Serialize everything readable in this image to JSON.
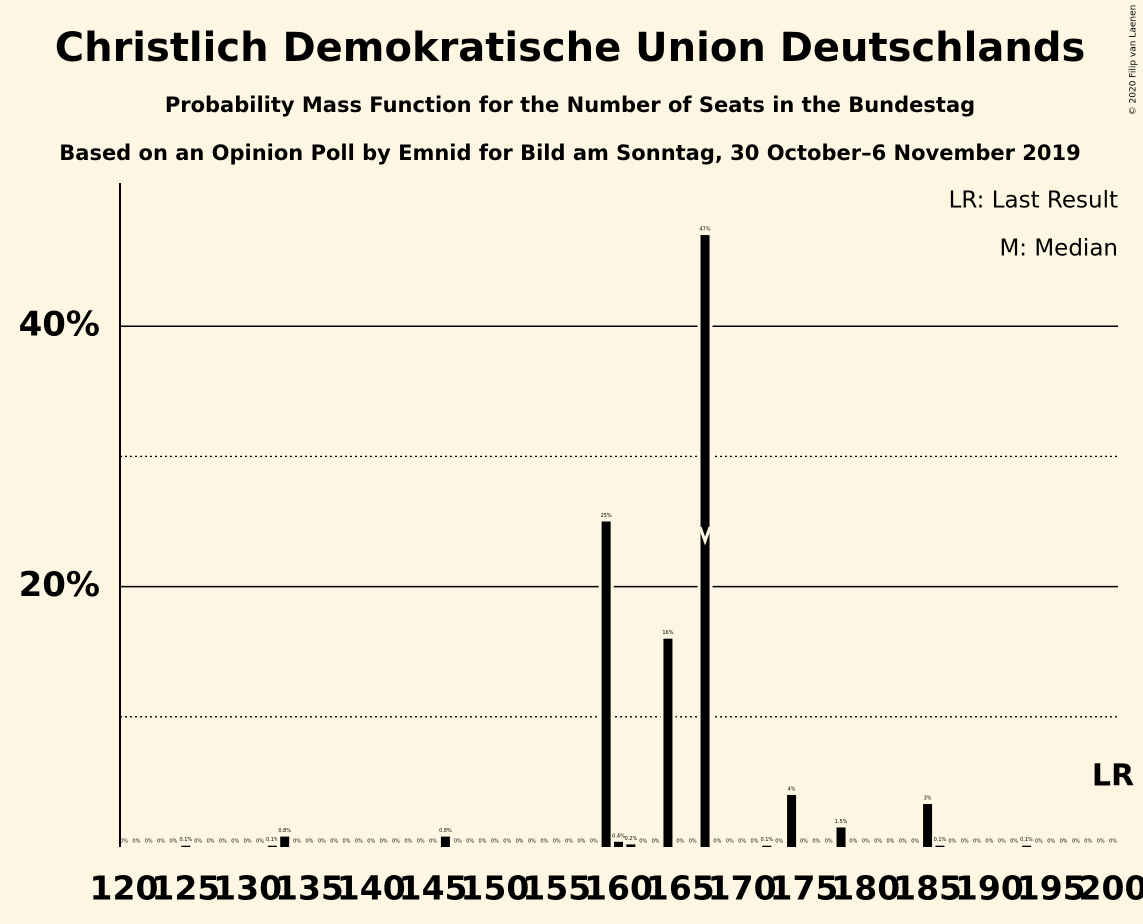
{
  "chart_data": {
    "type": "bar",
    "title": "Christlich Demokratische Union Deutschlands",
    "subtitle": "Probability Mass Function for the Number of Seats in the Bundestag",
    "subtitle2": "Based on an Opinion Poll by Emnid for Bild am Sonntag, 30 October–6 November 2019",
    "copyright": "© 2020 Filip van Laenen",
    "legend": [
      "LR: Last Result",
      "M: Median"
    ],
    "lr_label": "LR",
    "last_result": 200,
    "median": 167,
    "color": "#000000",
    "x": [
      120,
      121,
      122,
      123,
      124,
      125,
      126,
      127,
      128,
      129,
      130,
      131,
      132,
      133,
      134,
      135,
      136,
      137,
      138,
      139,
      140,
      141,
      142,
      143,
      144,
      145,
      146,
      147,
      148,
      149,
      150,
      151,
      152,
      153,
      154,
      155,
      156,
      157,
      158,
      159,
      160,
      161,
      162,
      163,
      164,
      165,
      166,
      167,
      168,
      169,
      170,
      171,
      172,
      173,
      174,
      175,
      176,
      177,
      178,
      179,
      180,
      181,
      182,
      183,
      184,
      185,
      186,
      187,
      188,
      189,
      190,
      191,
      192,
      193,
      194,
      195,
      196,
      197,
      198,
      199,
      200
    ],
    "values": [
      0,
      0,
      0,
      0,
      0,
      0.1,
      0,
      0,
      0,
      0,
      0,
      0,
      0.1,
      0.8,
      0,
      0,
      0,
      0,
      0,
      0,
      0,
      0,
      0,
      0,
      0,
      0,
      0.8,
      0,
      0,
      0,
      0,
      0,
      0,
      0,
      0,
      0,
      0,
      0,
      0,
      25,
      0.4,
      0.2,
      0,
      0,
      16,
      0,
      0,
      47,
      0,
      0,
      0,
      0,
      0.1,
      0,
      4,
      0,
      0,
      0,
      1.5,
      0,
      0,
      0,
      0,
      0,
      0,
      3.3,
      0.1,
      0,
      0,
      0,
      0,
      0,
      0,
      0.1,
      0,
      0,
      0,
      0,
      0,
      0,
      0
    ],
    "value_labels": [
      "0%",
      "0%",
      "0%",
      "0%",
      "0%",
      "0.1%",
      "0%",
      "0%",
      "0%",
      "0%",
      "0%",
      "0%",
      "0.1%",
      "0.8%",
      "0%",
      "0%",
      "0%",
      "0%",
      "0%",
      "0%",
      "0%",
      "0%",
      "0%",
      "0%",
      "0%",
      "0%",
      "0.8%",
      "0%",
      "0%",
      "0%",
      "0%",
      "0%",
      "0%",
      "0%",
      "0%",
      "0%",
      "0%",
      "0%",
      "0%",
      "25%",
      "0.4%",
      "0.2%",
      "0%",
      "0%",
      "16%",
      "0%",
      "0%",
      "47%",
      "0%",
      "0%",
      "0%",
      "0%",
      "0.1%",
      "0%",
      "4%",
      "0%",
      "0%",
      "0%",
      "1.5%",
      "0%",
      "0%",
      "0%",
      "0%",
      "0%",
      "0%",
      "3%",
      "0.1%",
      "0%",
      "0%",
      "0%",
      "0%",
      "0%",
      "0%",
      "0.1%",
      "0%",
      "0%",
      "0%",
      "0%",
      "0%",
      "0%",
      "0%"
    ],
    "xlim": [
      120,
      200
    ],
    "xticks": [
      120,
      125,
      130,
      135,
      140,
      145,
      150,
      155,
      160,
      165,
      170,
      175,
      180,
      185,
      190,
      195,
      200
    ],
    "ylim": [
      0,
      51
    ],
    "yticks": [
      {
        "value": 20,
        "label": "20%"
      },
      {
        "value": 40,
        "label": "40%"
      }
    ],
    "minor_yticks": [
      10,
      30
    ],
    "grid": true
  }
}
